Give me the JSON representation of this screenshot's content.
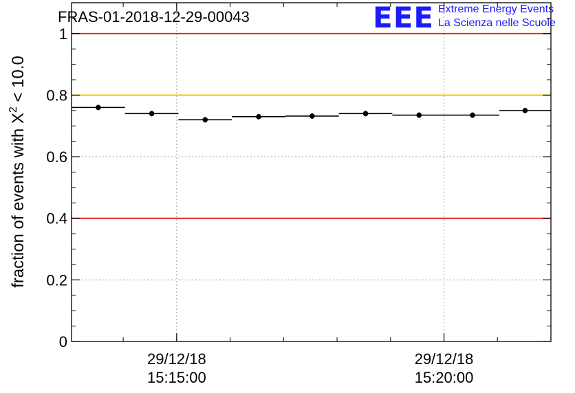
{
  "header": {
    "title": "FRAS-01-2018-12-29-00043",
    "logo_letters": "EEE",
    "logo_line1": "Extreme Energy Events",
    "logo_line2": "La Scienza nelle Scuole"
  },
  "colors": {
    "threshold_red": "#e8211f",
    "threshold_yellow": "#f5c400",
    "logo_blue": "#1a1aff",
    "grid": "#9a9a9a",
    "marker": "#000000"
  },
  "chart_data": {
    "type": "scatter",
    "title": "FRAS-01-2018-12-29-00043",
    "ylabel_main": "fraction of events with X",
    "ylabel_sup": "2",
    "ylabel_tail": " < 10.0",
    "xlabel": "",
    "xlim": [
      "2018-12-29 15:13:02",
      "2018-12-29 15:22:00"
    ],
    "ylim": [
      0,
      1.1
    ],
    "yticks": [
      0,
      0.2,
      0.4,
      0.6,
      0.8,
      1
    ],
    "ytick_labels": [
      "0",
      "0.2",
      "0.4",
      "0.6",
      "0.8",
      "1"
    ],
    "xticks": [
      {
        "x": "2018-12-29 15:15:00",
        "label_date": "29/12/18",
        "label_time": "15:15:00"
      },
      {
        "x": "2018-12-29 15:20:00",
        "label_date": "29/12/18",
        "label_time": "15:20:00"
      }
    ],
    "grid": true,
    "reference_lines": [
      {
        "y": 1.0,
        "color": "#e8211f"
      },
      {
        "y": 0.8,
        "color": "#f5c400"
      },
      {
        "y": 0.4,
        "color": "#e8211f"
      }
    ],
    "series": [
      {
        "points": [
          {
            "x_start": "2018-12-29 15:13:02",
            "x_end": "2018-12-29 15:14:02",
            "y": 0.76
          },
          {
            "x_start": "2018-12-29 15:14:02",
            "x_end": "2018-12-29 15:15:02",
            "y": 0.74
          },
          {
            "x_start": "2018-12-29 15:15:02",
            "x_end": "2018-12-29 15:16:02",
            "y": 0.72
          },
          {
            "x_start": "2018-12-29 15:16:02",
            "x_end": "2018-12-29 15:17:02",
            "y": 0.73
          },
          {
            "x_start": "2018-12-29 15:17:02",
            "x_end": "2018-12-29 15:18:02",
            "y": 0.732
          },
          {
            "x_start": "2018-12-29 15:18:02",
            "x_end": "2018-12-29 15:19:02",
            "y": 0.74
          },
          {
            "x_start": "2018-12-29 15:19:02",
            "x_end": "2018-12-29 15:20:02",
            "y": 0.735
          },
          {
            "x_start": "2018-12-29 15:20:02",
            "x_end": "2018-12-29 15:21:02",
            "y": 0.735
          },
          {
            "x_start": "2018-12-29 15:21:02",
            "x_end": "2018-12-29 15:22:00",
            "y": 0.75
          }
        ]
      }
    ]
  }
}
